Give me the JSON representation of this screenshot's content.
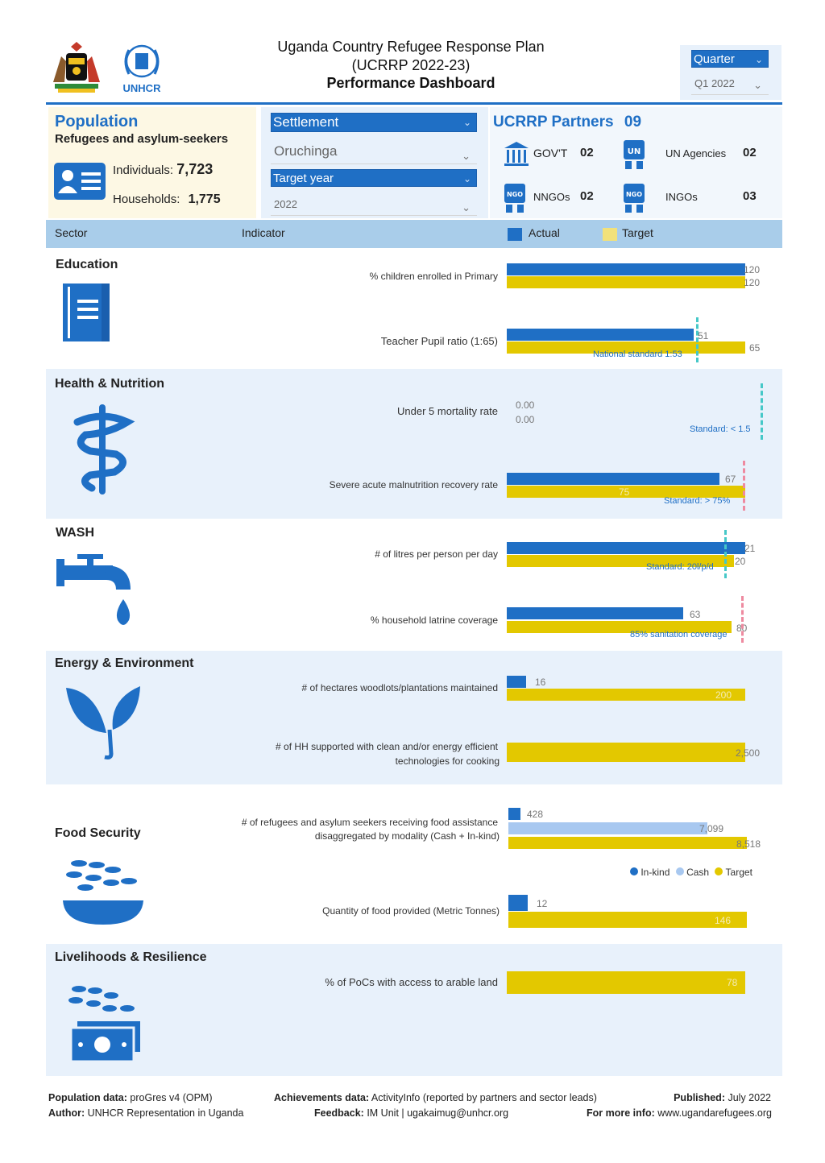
{
  "header": {
    "title_line1": "Uganda Country Refugee Response Plan",
    "title_line2": "(UCRRP 2022-23)",
    "title_line3": "Performance Dashboard",
    "logo_text": "UNHCR",
    "quarter_label": "Quarter",
    "quarter_value": "Q1 2022"
  },
  "population": {
    "title": "Population",
    "subtitle": "Refugees and asylum-seekers",
    "individuals_label": "Individuals:",
    "individuals_value": "7,723",
    "households_label": "Households:",
    "households_value": "1,775"
  },
  "filters": {
    "settlement_label": "Settlement",
    "settlement_value": "Oruchinga",
    "target_year_label": "Target year",
    "target_year_value": "2022"
  },
  "partners": {
    "title": "UCRRP Partners",
    "total": "09",
    "govt_label": "GOV'T",
    "govt_value": "02",
    "un_label": "UN Agencies",
    "un_value": "02",
    "nngo_label": "NNGOs",
    "nngo_value": "02",
    "ingo_label": "INGOs",
    "ingo_value": "03",
    "icon_un": "UN",
    "icon_ngo": "NGO"
  },
  "table_header": {
    "sector": "Sector",
    "indicator": "Indicator",
    "actual": "Actual",
    "target": "Target"
  },
  "colors": {
    "actual": "#1f6fc5",
    "target": "#e3c800",
    "cash": "#a8c8f0",
    "standard_teal": "#46c8c8",
    "standard_pink": "#ee8aa0"
  },
  "chart_data": {
    "type": "bar",
    "sectors": [
      {
        "name": "Education",
        "icon": "book-icon",
        "indicators": [
          {
            "label": "% children enrolled in Primary",
            "actual": 120,
            "target": 120,
            "actual_label": "120",
            "target_label": "120"
          },
          {
            "label": "Teacher Pupil ratio (1:65)",
            "actual": 51,
            "target": 65,
            "actual_label": "51",
            "target_label": "65",
            "standard": 53,
            "standard_label": "National standard 1:53",
            "standard_color": "teal"
          }
        ]
      },
      {
        "name": "Health & Nutrition",
        "icon": "health-icon",
        "indicators": [
          {
            "label": "Under 5 mortality rate",
            "actual": 0,
            "target": 0,
            "actual_label": "0.00",
            "target_label": "0.00",
            "standard": 1.5,
            "standard_label": "Standard: < 1.5",
            "standard_color": "teal"
          },
          {
            "label": "Severe acute malnutrition recovery rate",
            "actual": 67,
            "target": 75,
            "actual_label": "67",
            "target_label": "75",
            "standard": 75,
            "standard_label": "Standard: > 75%",
            "standard_color": "pink"
          }
        ]
      },
      {
        "name": "WASH",
        "icon": "water-tap-icon",
        "indicators": [
          {
            "label": "# of litres per person per day",
            "actual": 21,
            "target": 20,
            "actual_label": "21",
            "target_label": "20",
            "standard": 20,
            "standard_label": "Standard: 20l/p/d",
            "standard_color": "teal"
          },
          {
            "label": "% household latrine coverage",
            "actual": 63,
            "target": 80,
            "actual_label": "63",
            "target_label": "80",
            "standard": 85,
            "standard_label": "85% sanitation coverage",
            "standard_color": "pink"
          }
        ]
      },
      {
        "name": "Energy & Environment",
        "icon": "leaf-sprout-icon",
        "indicators": [
          {
            "label": "# of hectares woodlots/plantations maintained",
            "actual": 16,
            "target": 200,
            "actual_label": "16",
            "target_label": "200"
          },
          {
            "label_line1": "# of HH supported with clean and/or energy efficient",
            "label_line2": "technologies for cooking",
            "actual": 0,
            "target": 2500,
            "target_label": "2,500"
          }
        ]
      },
      {
        "name": "Food Security",
        "icon": "grain-bowl-icon",
        "legend": {
          "inkind": "In-kind",
          "cash": "Cash",
          "target": "Target"
        },
        "indicators": [
          {
            "label_line1": "# of refugees and asylum seekers receiving food assistance",
            "label_line2": "disaggregated by modality (Cash + In-kind)",
            "inkind": 428,
            "cash": 7099,
            "target": 8518,
            "inkind_label": "428",
            "cash_label": "7,099",
            "target_label": "8,518"
          },
          {
            "label": "Quantity of food provided (Metric Tonnes)",
            "actual": 12,
            "target": 146,
            "actual_label": "12",
            "target_label": "146"
          }
        ]
      },
      {
        "name": "Livelihoods & Resilience",
        "icon": "cash-grain-icon",
        "indicators": [
          {
            "label": "% of PoCs with access to arable land",
            "actual": 0,
            "target": 78,
            "target_label": "78"
          }
        ]
      }
    ]
  },
  "footer": {
    "pop_data_label": "Population data:",
    "pop_data_value": "proGres v4 (OPM)",
    "author_label": "Author:",
    "author_value": "UNHCR Representation in Uganda",
    "achievements_label": "Achievements data:",
    "achievements_value": "ActivityInfo (reported by partners and sector leads)",
    "feedback_label": "Feedback:",
    "feedback_value": "IM Unit | ugakaimug@unhcr.org",
    "published_label": "Published:",
    "published_value": "July 2022",
    "more_info_label": "For more info:",
    "more_info_value": "www.ugandarefugees.org"
  }
}
